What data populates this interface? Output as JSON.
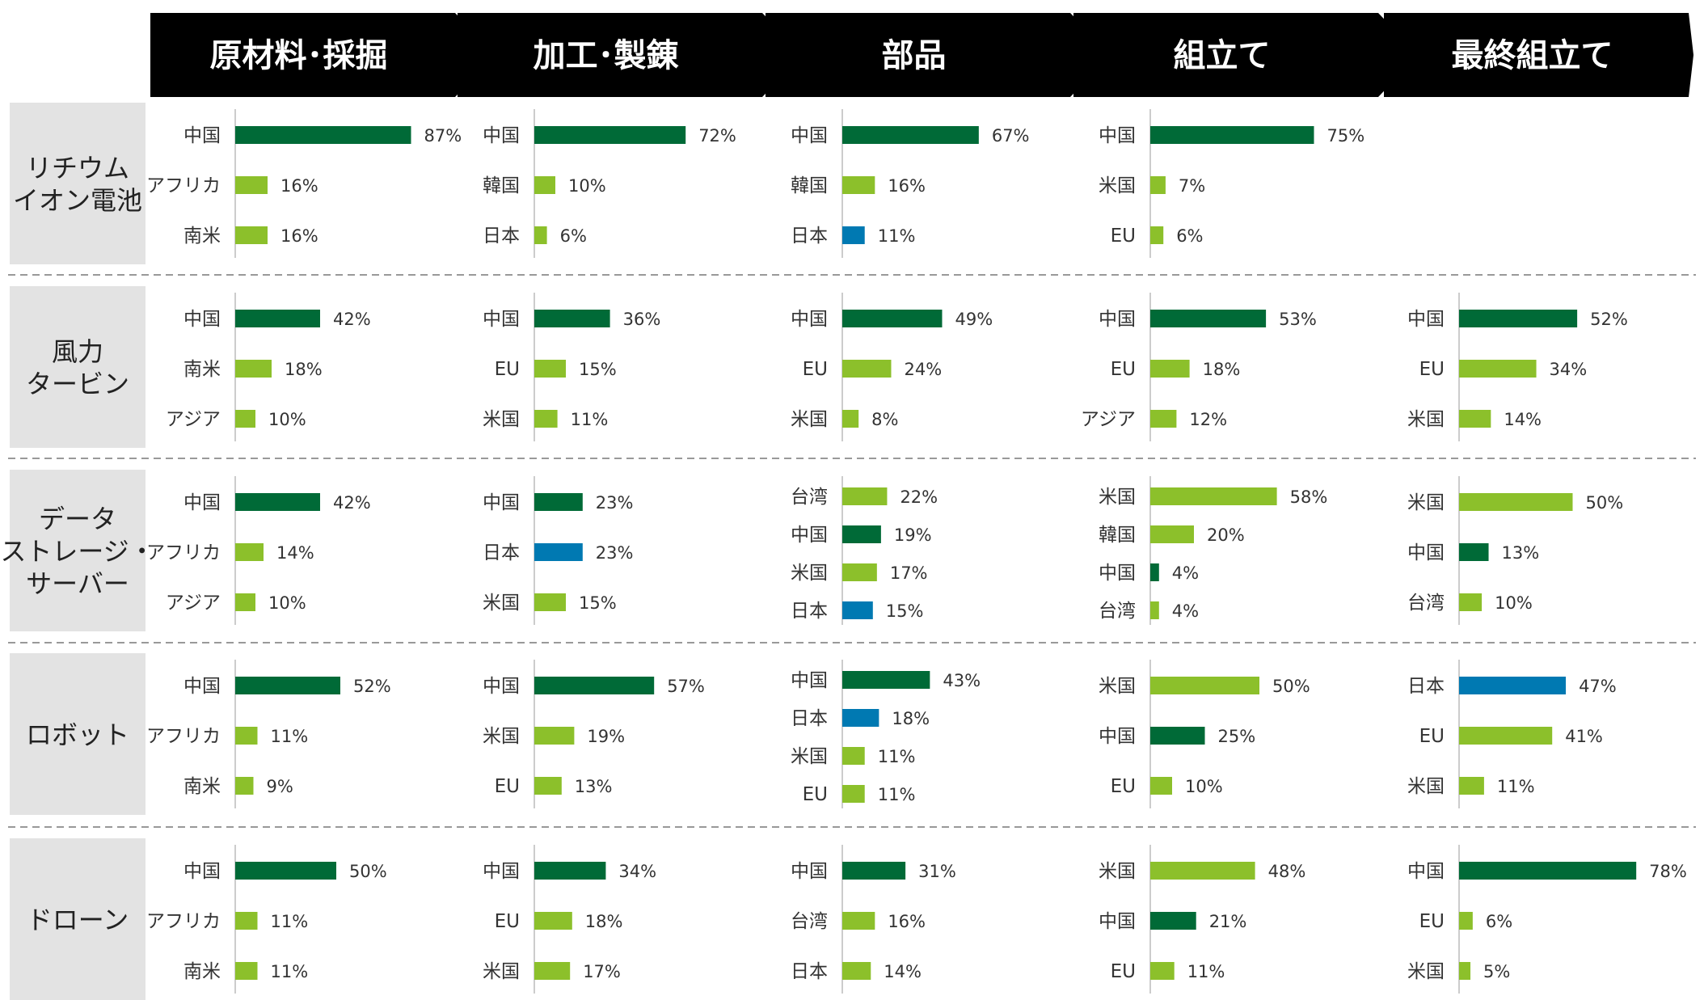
{
  "colors": {
    "china": "#006a37",
    "japan": "#0079b2",
    "other": "#8cc02b",
    "header_bg": "#000000",
    "header_text": "#ffffff",
    "row_label_bg": "#e3e3e3",
    "axis_line": "#cccccc",
    "separator": "#999999"
  },
  "chart_data": {
    "type": "bar",
    "orientation": "horizontal",
    "unit": "%",
    "stages": [
      "原材料･採掘",
      "加工･製錬",
      "部品",
      "組立て",
      "最終組立て"
    ],
    "products": [
      {
        "name": "リチウム\nイオン電池",
        "cells": [
          {
            "bars": [
              {
                "label": "中国",
                "value": 87,
                "color": "china"
              },
              {
                "label": "アフリカ",
                "value": 16,
                "color": "other"
              },
              {
                "label": "南米",
                "value": 16,
                "color": "other"
              }
            ]
          },
          {
            "bars": [
              {
                "label": "中国",
                "value": 72,
                "color": "china"
              },
              {
                "label": "韓国",
                "value": 10,
                "color": "other"
              },
              {
                "label": "日本",
                "value": 6,
                "color": "other"
              }
            ]
          },
          {
            "bars": [
              {
                "label": "中国",
                "value": 67,
                "color": "china"
              },
              {
                "label": "韓国",
                "value": 16,
                "color": "other"
              },
              {
                "label": "日本",
                "value": 11,
                "color": "japan"
              }
            ]
          },
          {
            "bars": [
              {
                "label": "中国",
                "value": 75,
                "color": "china"
              },
              {
                "label": "米国",
                "value": 7,
                "color": "other"
              },
              {
                "label": "EU",
                "value": 6,
                "color": "other"
              }
            ]
          },
          {
            "bars": []
          }
        ]
      },
      {
        "name": "風力\nタービン",
        "cells": [
          {
            "bars": [
              {
                "label": "中国",
                "value": 42,
                "color": "china"
              },
              {
                "label": "南米",
                "value": 18,
                "color": "other"
              },
              {
                "label": "アジア",
                "value": 10,
                "color": "other"
              }
            ]
          },
          {
            "bars": [
              {
                "label": "中国",
                "value": 36,
                "color": "china"
              },
              {
                "label": "EU",
                "value": 15,
                "color": "other"
              },
              {
                "label": "米国",
                "value": 11,
                "color": "other"
              }
            ]
          },
          {
            "bars": [
              {
                "label": "中国",
                "value": 49,
                "color": "china"
              },
              {
                "label": "EU",
                "value": 24,
                "color": "other"
              },
              {
                "label": "米国",
                "value": 8,
                "color": "other"
              }
            ]
          },
          {
            "bars": [
              {
                "label": "中国",
                "value": 53,
                "color": "china"
              },
              {
                "label": "EU",
                "value": 18,
                "color": "other"
              },
              {
                "label": "アジア",
                "value": 12,
                "color": "other"
              }
            ]
          },
          {
            "bars": [
              {
                "label": "中国",
                "value": 52,
                "color": "china"
              },
              {
                "label": "EU",
                "value": 34,
                "color": "other"
              },
              {
                "label": "米国",
                "value": 14,
                "color": "other"
              }
            ]
          }
        ]
      },
      {
        "name": "データ\nストレージ・\nサーバー",
        "cells": [
          {
            "bars": [
              {
                "label": "中国",
                "value": 42,
                "color": "china"
              },
              {
                "label": "アフリカ",
                "value": 14,
                "color": "other"
              },
              {
                "label": "アジア",
                "value": 10,
                "color": "other"
              }
            ]
          },
          {
            "bars": [
              {
                "label": "中国",
                "value": 23,
                "color": "china"
              },
              {
                "label": "日本",
                "value": 23,
                "color": "japan"
              },
              {
                "label": "米国",
                "value": 15,
                "color": "other"
              }
            ]
          },
          {
            "bars": [
              {
                "label": "台湾",
                "value": 22,
                "color": "other"
              },
              {
                "label": "中国",
                "value": 19,
                "color": "china"
              },
              {
                "label": "米国",
                "value": 17,
                "color": "other"
              },
              {
                "label": "日本",
                "value": 15,
                "color": "japan"
              }
            ]
          },
          {
            "bars": [
              {
                "label": "米国",
                "value": 58,
                "color": "other"
              },
              {
                "label": "韓国",
                "value": 20,
                "color": "other"
              },
              {
                "label": "中国",
                "value": 4,
                "color": "china"
              },
              {
                "label": "台湾",
                "value": 4,
                "color": "other"
              }
            ]
          },
          {
            "bars": [
              {
                "label": "米国",
                "value": 50,
                "color": "other"
              },
              {
                "label": "中国",
                "value": 13,
                "color": "china"
              },
              {
                "label": "台湾",
                "value": 10,
                "color": "other"
              }
            ]
          }
        ]
      },
      {
        "name": "ロボット",
        "cells": [
          {
            "bars": [
              {
                "label": "中国",
                "value": 52,
                "color": "china"
              },
              {
                "label": "アフリカ",
                "value": 11,
                "color": "other"
              },
              {
                "label": "南米",
                "value": 9,
                "color": "other"
              }
            ]
          },
          {
            "bars": [
              {
                "label": "中国",
                "value": 57,
                "color": "china"
              },
              {
                "label": "米国",
                "value": 19,
                "color": "other"
              },
              {
                "label": "EU",
                "value": 13,
                "color": "other"
              }
            ]
          },
          {
            "bars": [
              {
                "label": "中国",
                "value": 43,
                "color": "china"
              },
              {
                "label": "日本",
                "value": 18,
                "color": "japan"
              },
              {
                "label": "米国",
                "value": 11,
                "color": "other"
              },
              {
                "label": "EU",
                "value": 11,
                "color": "other"
              }
            ]
          },
          {
            "bars": [
              {
                "label": "米国",
                "value": 50,
                "color": "other"
              },
              {
                "label": "中国",
                "value": 25,
                "color": "china"
              },
              {
                "label": "EU",
                "value": 10,
                "color": "other"
              }
            ]
          },
          {
            "bars": [
              {
                "label": "日本",
                "value": 47,
                "color": "japan"
              },
              {
                "label": "EU",
                "value": 41,
                "color": "other"
              },
              {
                "label": "米国",
                "value": 11,
                "color": "other"
              }
            ]
          }
        ]
      },
      {
        "name": "ドローン",
        "cells": [
          {
            "bars": [
              {
                "label": "中国",
                "value": 50,
                "color": "china"
              },
              {
                "label": "アフリカ",
                "value": 11,
                "color": "other"
              },
              {
                "label": "南米",
                "value": 11,
                "color": "other"
              }
            ]
          },
          {
            "bars": [
              {
                "label": "中国",
                "value": 34,
                "color": "china"
              },
              {
                "label": "EU",
                "value": 18,
                "color": "other"
              },
              {
                "label": "米国",
                "value": 17,
                "color": "other"
              }
            ]
          },
          {
            "bars": [
              {
                "label": "中国",
                "value": 31,
                "color": "china"
              },
              {
                "label": "台湾",
                "value": 16,
                "color": "other"
              },
              {
                "label": "日本",
                "value": 14,
                "color": "other"
              }
            ]
          },
          {
            "bars": [
              {
                "label": "米国",
                "value": 48,
                "color": "other"
              },
              {
                "label": "中国",
                "value": 21,
                "color": "china"
              },
              {
                "label": "EU",
                "value": 11,
                "color": "other"
              }
            ]
          },
          {
            "bars": [
              {
                "label": "中国",
                "value": 78,
                "color": "china"
              },
              {
                "label": "EU",
                "value": 6,
                "color": "other"
              },
              {
                "label": "米国",
                "value": 5,
                "color": "other"
              }
            ]
          }
        ]
      }
    ]
  }
}
